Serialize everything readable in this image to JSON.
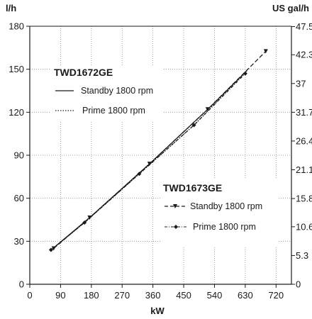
{
  "chart_data": {
    "type": "line",
    "title": "",
    "xlabel": "kW",
    "ylabel_left": "l/h",
    "ylabel_right": "US gal/h",
    "xlim": [
      0,
      765
    ],
    "ylim": [
      0,
      180
    ],
    "x_ticks": [
      "0",
      "90",
      "180",
      "270",
      "360",
      "450",
      "540",
      "630",
      "720"
    ],
    "y_ticks": [
      "0",
      "30",
      "60",
      "90",
      "120",
      "150",
      "180"
    ],
    "y_ticks_right": [
      "0",
      "5.3",
      "10.6",
      "15.8",
      "21.1",
      "26.4",
      "31.7",
      "37",
      "42.3",
      "47.5"
    ],
    "grid": true,
    "legends": [
      {
        "title": "TWD1672GE",
        "entries": [
          "Standby 1800 rpm",
          "Prime 1800 rpm"
        ]
      },
      {
        "title": "TWD1673GE",
        "entries": [
          "Standby 1800 rpm",
          "Prime 1800 rpm"
        ]
      }
    ],
    "series": [
      {
        "name": "Standby 1800 rpm",
        "group": "TWD1672GE",
        "style": "solid",
        "marker": "none",
        "x": [
          65,
          175,
          350,
          520,
          635
        ],
        "y": [
          24.5,
          46.5,
          84,
          122,
          149
        ]
      },
      {
        "name": "Prime 1800 rpm",
        "group": "TWD1672GE",
        "style": "dotted",
        "marker": "none",
        "x": [
          60,
          160,
          320,
          480,
          610
        ],
        "y": [
          23.5,
          43,
          77,
          111,
          143
        ]
      },
      {
        "name": "Standby 1800 rpm",
        "group": "TWD1673GE",
        "style": "dashed",
        "marker": "triangle-down",
        "x": [
          70,
          175,
          350,
          520,
          690
        ],
        "y": [
          25,
          46.5,
          84,
          122,
          162.5
        ]
      },
      {
        "name": "Prime 1800 rpm",
        "group": "TWD1673GE",
        "style": "dashdot",
        "marker": "diamond",
        "x": [
          62,
          160,
          320,
          480,
          630
        ],
        "y": [
          24,
          43,
          77,
          111,
          147
        ]
      }
    ]
  }
}
